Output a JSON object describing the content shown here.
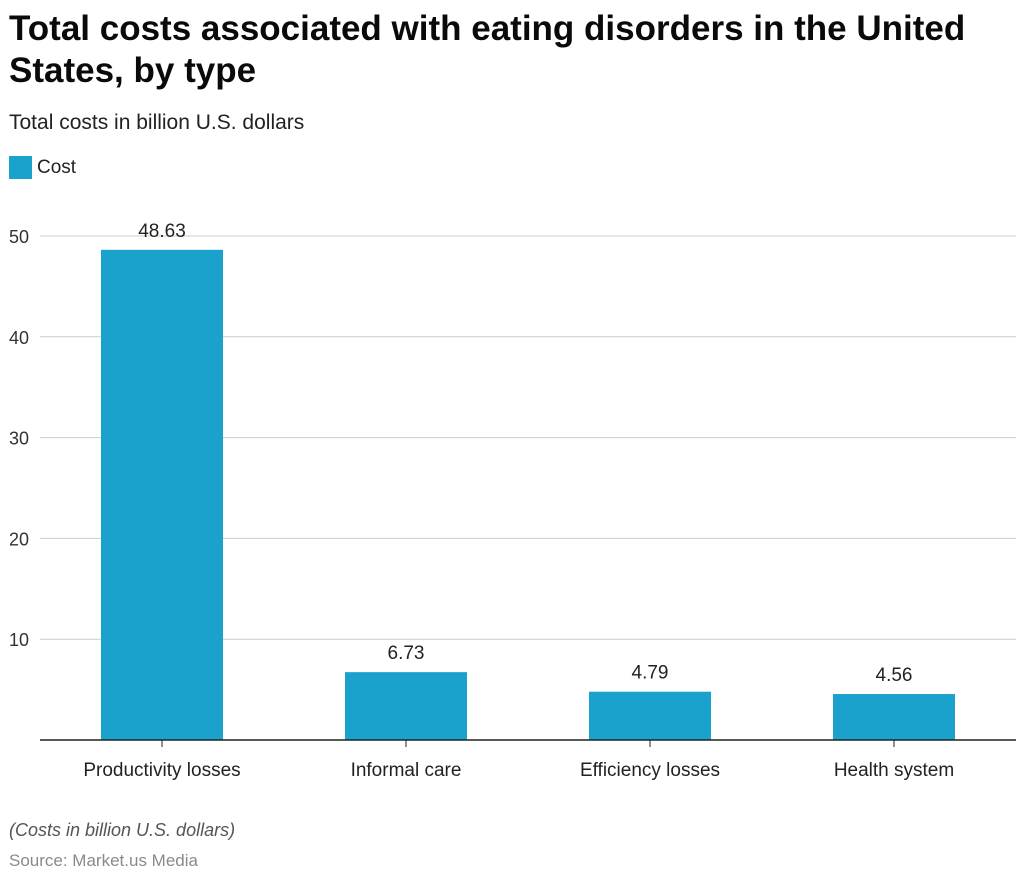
{
  "chart_data": {
    "type": "bar",
    "title": "Total costs associated with eating disorders in the United States, by type",
    "subtitle": "Total costs in billion U.S. dollars",
    "categories": [
      "Productivity losses",
      "Informal care",
      "Efficiency losses",
      "Health system"
    ],
    "series": [
      {
        "name": "Cost",
        "values": [
          48.63,
          6.73,
          4.79,
          4.56
        ],
        "labels": [
          "48.63",
          "6.73",
          "4.79",
          "4.56"
        ],
        "color": "#1aa1cc"
      }
    ],
    "ylim": [
      0,
      50
    ],
    "yticks": [
      10,
      20,
      30,
      40,
      50
    ],
    "grid": true,
    "legend_position": "top-left",
    "xlabel": "",
    "ylabel": ""
  },
  "footnote": "(Costs in billion U.S. dollars)",
  "source": "Source: Market.us Media"
}
